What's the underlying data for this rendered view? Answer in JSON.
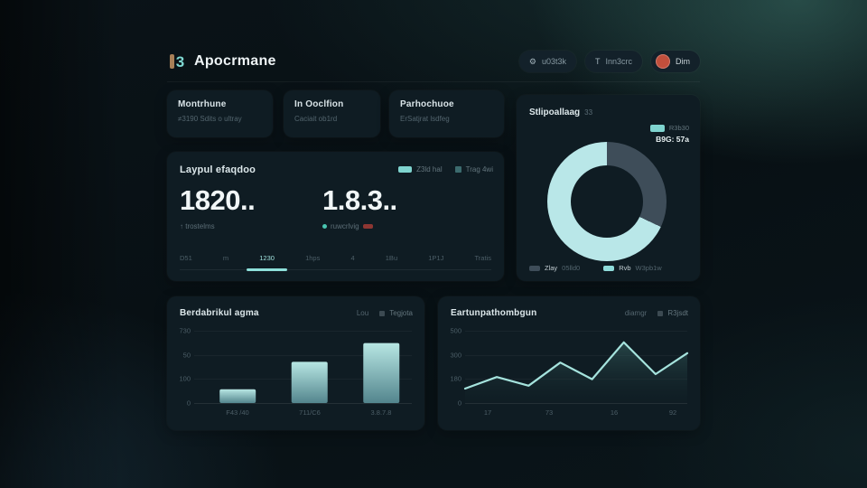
{
  "app": {
    "title": "Apocrmane"
  },
  "theme": {
    "accent": "#8ee0da",
    "card_bg": "#0f1c23",
    "avatar_color": "#c14f3c",
    "logo_teal": "#7fd8d2",
    "logo_tan": "#a87f57"
  },
  "header": {
    "buttons": [
      {
        "icon": "gear-icon",
        "icon_glyph": "⚙",
        "label": "u03t3k"
      },
      {
        "icon": "sort-icon",
        "icon_glyph": "T",
        "label": "Inn3crc"
      },
      {
        "icon": "avatar",
        "label": "Dim"
      }
    ],
    "logo_glyph": "3"
  },
  "stat_cards": [
    {
      "title": "Montrhune",
      "subtitle": "≠3190 Sdits o ultray"
    },
    {
      "title": "In Ooclfion",
      "subtitle": "Caciait ob1rd"
    },
    {
      "title": "Parhochuoe",
      "subtitle": "ErSatjrat lsdfeg"
    }
  ],
  "metrics_card": {
    "title": "Laypul efaqdoo",
    "legend": [
      {
        "label": "Z3ld hal",
        "color": "#7fd4cf"
      },
      {
        "label": "Trag 4wi",
        "color": "#3c6b6e"
      }
    ],
    "metrics": [
      {
        "value": "1820..",
        "note": "↑ trostelms"
      },
      {
        "value": "1.8.3..",
        "note": "ruwcrlvig",
        "note_dot_color": "#49c5b1",
        "tag_color": "#a33b35"
      }
    ],
    "tabs": [
      {
        "label": "D51"
      },
      {
        "label": "m"
      },
      {
        "label": "1230"
      },
      {
        "label": "1hps"
      },
      {
        "label": "4"
      },
      {
        "label": "1Bu"
      },
      {
        "label": "1P1J"
      },
      {
        "label": "Tratis"
      }
    ],
    "active_tab_index": 2
  },
  "donut_card": {
    "title": "Stlipoallaag",
    "badge": "33",
    "top_legend": {
      "pill_color": "#7fd4cf",
      "pill_label": "R3b30",
      "value_label": "B9G: 57a"
    },
    "bottom_legend": [
      {
        "color": "#3e4d59",
        "label": "Zlay",
        "sub": "05lld0"
      },
      {
        "color": "#8fdcda",
        "label": "Rvb",
        "sub": "W3pb1w"
      }
    ]
  },
  "bar_card": {
    "title": "Berdabrikul agma",
    "legend_note": "Lou",
    "legend_item": "Tegjota",
    "legend_swatch_color": "#3c4a52"
  },
  "line_card": {
    "title": "Eartunpathombgun",
    "legend_note": "diamgr",
    "legend_item": "R3jsdt",
    "legend_swatch_color": "#3c4a52"
  },
  "chart_data": [
    {
      "id": "sessions-donut",
      "type": "pie",
      "subtype": "donut",
      "title": "Stlipoallaag",
      "slices": [
        {
          "label": "Zlay 05lld0",
          "value": 32,
          "color": "#3e4d59"
        },
        {
          "label": "Rvb W3pb1w",
          "value": 68,
          "color": "#b9e7e8"
        }
      ],
      "start_angle_deg": 0,
      "legend_position": "bottom"
    },
    {
      "id": "category-bars",
      "type": "bar",
      "title": "Berdabrikul agma",
      "categories": [
        "F43 /40",
        "711/C6",
        "3.8.7.8"
      ],
      "values": [
        19,
        57,
        83
      ],
      "ylim": [
        0,
        100
      ],
      "ytick_labels": [
        "730",
        "50",
        "100",
        "0"
      ],
      "grid": true,
      "bar_gradient": [
        "#b7e6e3",
        "#53858d"
      ]
    },
    {
      "id": "trend-area",
      "type": "area",
      "title": "Eartunpathombgun",
      "x": [
        0,
        1,
        2,
        3,
        4,
        5,
        6,
        7
      ],
      "values": [
        100,
        180,
        120,
        280,
        165,
        420,
        200,
        345
      ],
      "ylim": [
        0,
        500
      ],
      "ytick_labels": [
        "500",
        "300",
        "180",
        "0"
      ],
      "xtick_labels": [
        "17",
        "73",
        "16",
        "92"
      ],
      "grid": true,
      "line_color": "#a5e3dd",
      "fill_gradient": [
        "rgba(62,110,108,0.50)",
        "rgba(22,42,46,0.08)"
      ]
    }
  ]
}
